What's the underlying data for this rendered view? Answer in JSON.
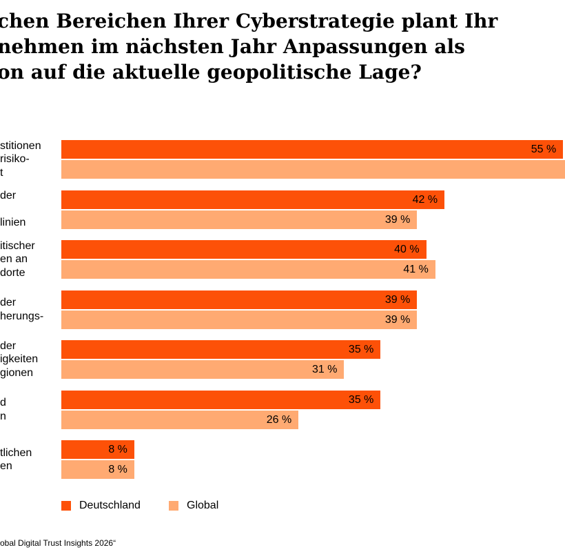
{
  "title_lines": [
    "chen Bereichen Ihrer Cyberstrategie plant Ihr",
    "nehmen im nächsten Jahr Anpassungen als",
    "on auf die aktuelle geopolitische Lage?"
  ],
  "colors": {
    "deutschland": "#FD5108",
    "global": "#FFAA72"
  },
  "chart_data": {
    "type": "bar",
    "orientation": "horizontal",
    "categories": [
      [
        "stitionen",
        "risiko-",
        "t"
      ],
      [
        "der",
        "",
        "linien"
      ],
      [
        "itischer",
        "en an",
        "dorte"
      ],
      [
        "der",
        "herungs-"
      ],
      [
        "der",
        "igkeiten",
        "gionen"
      ],
      [
        "d",
        "n"
      ],
      [
        "tlichen",
        "en"
      ]
    ],
    "series": [
      {
        "name": "Deutschland",
        "values": [
          55,
          42,
          40,
          39,
          35,
          35,
          8
        ],
        "labels": [
          "55 %",
          "42 %",
          "40 %",
          "39 %",
          "35 %",
          "35 %",
          "8 %"
        ]
      },
      {
        "name": "Global",
        "values": [
          null,
          39,
          41,
          39,
          31,
          26,
          8
        ],
        "labels": [
          "",
          "39 %",
          "41 %",
          "39 %",
          "31 %",
          "26 %",
          "8 %"
        ]
      }
    ],
    "legend_position": "bottom-left",
    "grid": false
  },
  "footer": "obal Digital Trust Insights 2026“"
}
